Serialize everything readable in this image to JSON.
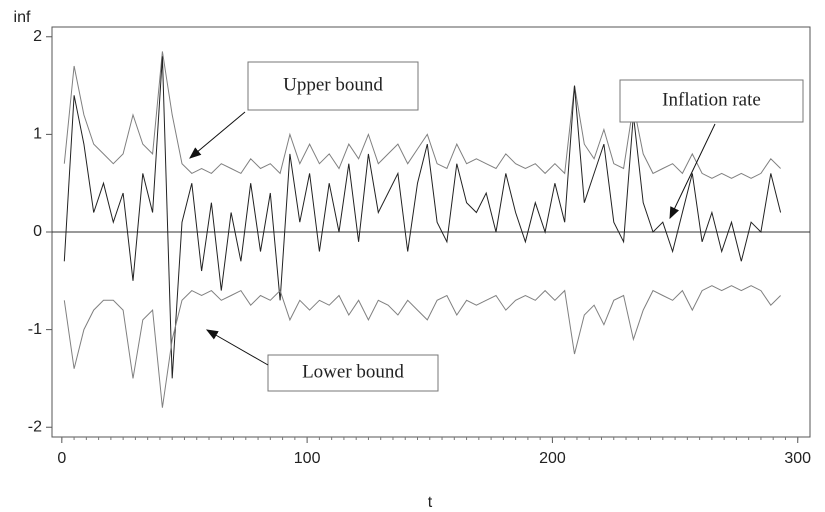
{
  "chart_data": {
    "type": "line",
    "xlabel": "t",
    "ylabel": "inf",
    "xlim": [
      -4,
      305
    ],
    "ylim": [
      -2.1,
      2.1
    ],
    "xticks": [
      0,
      100,
      200,
      300
    ],
    "yticks": [
      2,
      1,
      0,
      -1,
      -2
    ],
    "hline": 0,
    "x": [
      1,
      5,
      9,
      13,
      17,
      21,
      25,
      29,
      33,
      37,
      41,
      45,
      49,
      53,
      57,
      61,
      65,
      69,
      73,
      77,
      81,
      85,
      89,
      93,
      97,
      101,
      105,
      109,
      113,
      117,
      121,
      125,
      129,
      133,
      137,
      141,
      145,
      149,
      153,
      157,
      161,
      165,
      169,
      173,
      177,
      181,
      185,
      189,
      193,
      197,
      201,
      205,
      209,
      213,
      217,
      221,
      225,
      229,
      233,
      237,
      241,
      245,
      249,
      253,
      257,
      261,
      265,
      269,
      273,
      277,
      281,
      285,
      289,
      293
    ],
    "series": [
      {
        "name": "Upper bound",
        "color": "#808080",
        "values": [
          0.7,
          1.7,
          1.2,
          0.9,
          0.8,
          0.7,
          0.8,
          1.2,
          0.9,
          0.8,
          1.85,
          1.2,
          0.7,
          0.6,
          0.65,
          0.6,
          0.7,
          0.65,
          0.6,
          0.75,
          0.65,
          0.7,
          0.6,
          1.0,
          0.7,
          0.9,
          0.7,
          0.8,
          0.65,
          0.9,
          0.75,
          1.0,
          0.7,
          0.8,
          0.9,
          0.7,
          0.85,
          1.0,
          0.7,
          0.65,
          0.9,
          0.7,
          0.75,
          0.7,
          0.65,
          0.8,
          0.7,
          0.65,
          0.7,
          0.6,
          0.7,
          0.6,
          1.5,
          0.9,
          0.75,
          1.05,
          0.7,
          0.65,
          1.3,
          0.8,
          0.6,
          0.65,
          0.7,
          0.6,
          0.8,
          0.6,
          0.55,
          0.6,
          0.55,
          0.6,
          0.55,
          0.6,
          0.75,
          0.65
        ]
      },
      {
        "name": "Inflation rate",
        "color": "#222222",
        "values": [
          -0.3,
          1.4,
          0.9,
          0.2,
          0.5,
          0.1,
          0.4,
          -0.5,
          0.6,
          0.2,
          1.8,
          -1.5,
          0.1,
          0.5,
          -0.4,
          0.3,
          -0.6,
          0.2,
          -0.3,
          0.5,
          -0.2,
          0.4,
          -0.7,
          0.8,
          0.1,
          0.6,
          -0.2,
          0.5,
          0.0,
          0.7,
          -0.1,
          0.8,
          0.2,
          0.4,
          0.6,
          -0.2,
          0.5,
          0.9,
          0.1,
          -0.1,
          0.7,
          0.3,
          0.2,
          0.4,
          0.0,
          0.6,
          0.2,
          -0.1,
          0.3,
          0.0,
          0.5,
          0.1,
          1.5,
          0.3,
          0.6,
          0.9,
          0.1,
          -0.1,
          1.2,
          0.3,
          0.0,
          0.1,
          -0.2,
          0.2,
          0.6,
          -0.1,
          0.2,
          -0.2,
          0.1,
          -0.3,
          0.1,
          0.0,
          0.6,
          0.2
        ]
      },
      {
        "name": "Lower bound",
        "color": "#808080",
        "values": [
          -0.7,
          -1.4,
          -1.0,
          -0.8,
          -0.7,
          -0.7,
          -0.8,
          -1.5,
          -0.9,
          -0.8,
          -1.8,
          -1.1,
          -0.7,
          -0.6,
          -0.65,
          -0.6,
          -0.7,
          -0.65,
          -0.6,
          -0.75,
          -0.65,
          -0.7,
          -0.6,
          -0.9,
          -0.7,
          -0.8,
          -0.7,
          -0.75,
          -0.65,
          -0.85,
          -0.7,
          -0.9,
          -0.7,
          -0.75,
          -0.85,
          -0.7,
          -0.8,
          -0.9,
          -0.7,
          -0.65,
          -0.85,
          -0.7,
          -0.75,
          -0.7,
          -0.65,
          -0.8,
          -0.7,
          -0.65,
          -0.7,
          -0.6,
          -0.7,
          -0.6,
          -1.25,
          -0.85,
          -0.75,
          -0.95,
          -0.7,
          -0.65,
          -1.1,
          -0.8,
          -0.6,
          -0.65,
          -0.7,
          -0.6,
          -0.8,
          -0.6,
          -0.55,
          -0.6,
          -0.55,
          -0.6,
          -0.55,
          -0.6,
          -0.75,
          -0.65
        ]
      }
    ]
  }
}
